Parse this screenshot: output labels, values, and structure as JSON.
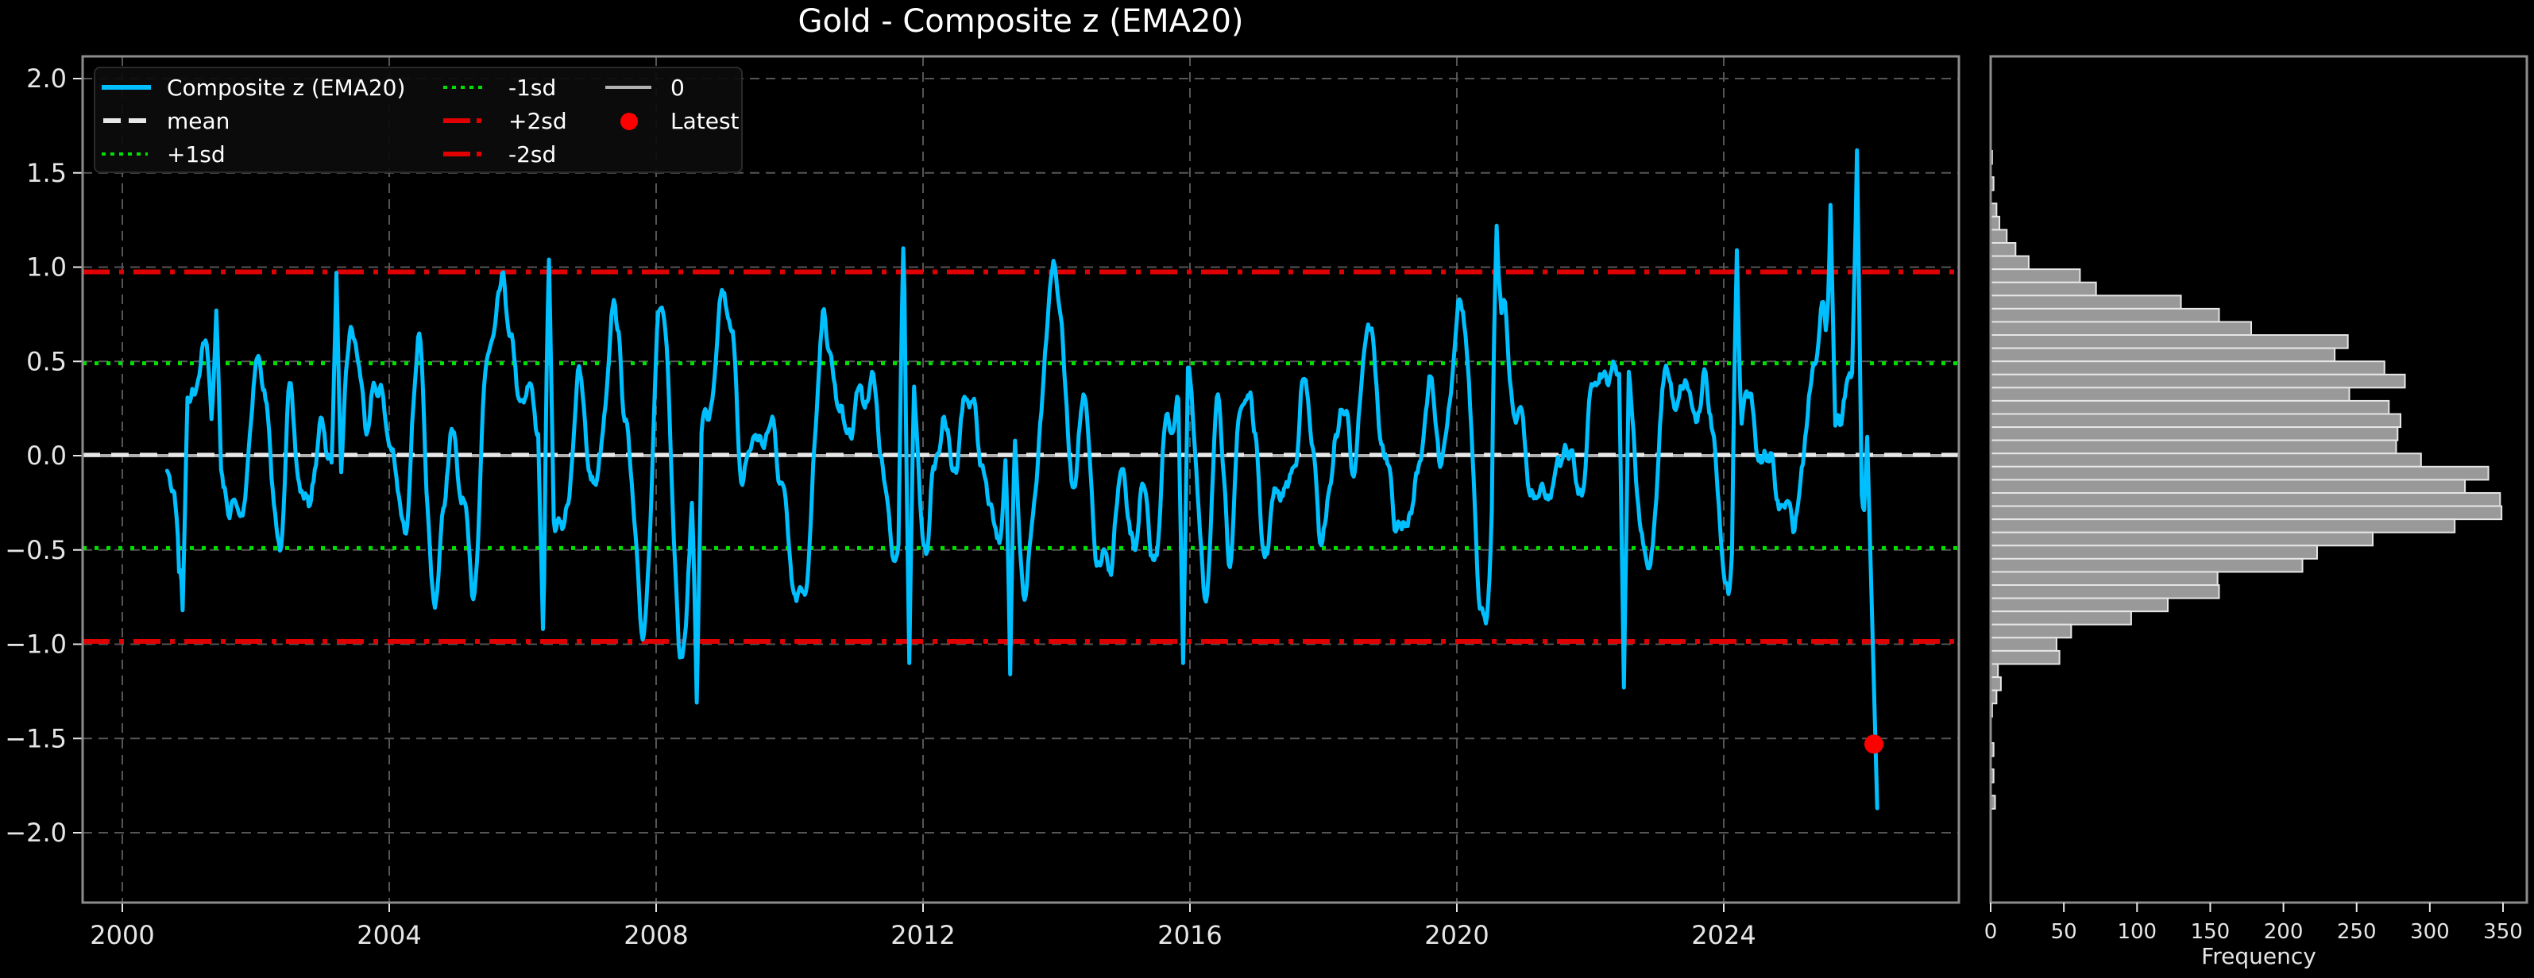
{
  "title": "Gold - Composite z (EMA20)",
  "colors": {
    "background": "#000000",
    "series": "#00bfff",
    "mean": "#e8e8e8",
    "sd1": "#00e000",
    "sd2": "#e00000",
    "zero": "#b0b0b0",
    "latest": "#ff0000",
    "hist_bar": "#999999",
    "hist_edge": "#e6e6e6",
    "grid": "#555555",
    "spine": "#8c8c8c"
  },
  "legend": {
    "items": [
      {
        "label": "Composite z (EMA20)",
        "style": "solid-blue"
      },
      {
        "label": "mean",
        "style": "dashed-white"
      },
      {
        "label": "+1sd",
        "style": "dotted-green"
      },
      {
        "label": "-1sd",
        "style": "dotted-green"
      },
      {
        "label": "+2sd",
        "style": "dashdot-red"
      },
      {
        "label": "-2sd",
        "style": "dashdot-red"
      },
      {
        "label": "0",
        "style": "solid-gray"
      },
      {
        "label": "Latest",
        "style": "dot-red"
      }
    ]
  },
  "histogram": {
    "xlabel": "Frequency"
  },
  "chart_data": [
    {
      "type": "line",
      "title": "Gold - Composite z (EMA20)",
      "xlabel": "",
      "ylabel": "",
      "x_ticks": [
        "2000",
        "2004",
        "2008",
        "2012",
        "2016",
        "2020",
        "2024"
      ],
      "y_ticks": [
        "2.0",
        "1.5",
        "1.0",
        "0.5",
        "0.0",
        "−0.5",
        "−1.0",
        "−1.5",
        "−2.0"
      ],
      "xlim": [
        1999.4,
        2027.6
      ],
      "ylim": [
        -2.38,
        2.12
      ],
      "grid": true,
      "legend_position": "upper left",
      "series": [
        {
          "name": "Composite z (EMA20)",
          "x_start": 2000.67,
          "x_end": 2026.3,
          "key_points": [
            {
              "x": 2000.67,
              "y": -0.08
            },
            {
              "x": 2000.85,
              "y": -0.55
            },
            {
              "x": 2000.9,
              "y": -0.82
            },
            {
              "x": 2001.4,
              "y": 0.77
            },
            {
              "x": 2003.2,
              "y": 0.97
            },
            {
              "x": 2006.4,
              "y": 1.04
            },
            {
              "x": 2006.3,
              "y": -0.92
            },
            {
              "x": 2008.6,
              "y": -1.31
            },
            {
              "x": 2011.7,
              "y": 1.1
            },
            {
              "x": 2011.8,
              "y": -1.1
            },
            {
              "x": 2013.3,
              "y": -1.16
            },
            {
              "x": 2015.9,
              "y": -1.1
            },
            {
              "x": 2020.6,
              "y": 1.22
            },
            {
              "x": 2022.5,
              "y": -1.23
            },
            {
              "x": 2024.2,
              "y": 1.09
            },
            {
              "x": 2025.6,
              "y": 1.33
            },
            {
              "x": 2026.0,
              "y": 1.62
            },
            {
              "x": 2026.15,
              "y": 0.1
            },
            {
              "x": 2026.3,
              "y": -1.87
            }
          ]
        },
        {
          "name": "mean",
          "y": 0.005
        },
        {
          "name": "+1sd",
          "y": 0.49
        },
        {
          "name": "-1sd",
          "y": -0.49
        },
        {
          "name": "+2sd",
          "y": 0.975
        },
        {
          "name": "-2sd",
          "y": -0.985
        },
        {
          "name": "0",
          "y": 0.0
        },
        {
          "name": "Latest",
          "x": 2026.25,
          "y": -1.53
        }
      ]
    },
    {
      "type": "bar",
      "orientation": "horizontal",
      "title": "",
      "xlabel": "Frequency",
      "x_ticks": [
        "0",
        "50",
        "100",
        "150",
        "200",
        "250",
        "300",
        "350"
      ],
      "xlim": [
        0,
        360
      ],
      "bin_top": 1.617,
      "bin_width": 0.0698,
      "bins_top_to_bottom": [
        1,
        0,
        2,
        0,
        4,
        6,
        11,
        17,
        26,
        61,
        72,
        130,
        156,
        178,
        244,
        235,
        269,
        283,
        245,
        272,
        280,
        278,
        277,
        294,
        340,
        324,
        348,
        349,
        317,
        261,
        223,
        213,
        155,
        156,
        121,
        96,
        55,
        45,
        47,
        5,
        7,
        4,
        1,
        0,
        0,
        2,
        0,
        2,
        0,
        3
      ]
    }
  ]
}
